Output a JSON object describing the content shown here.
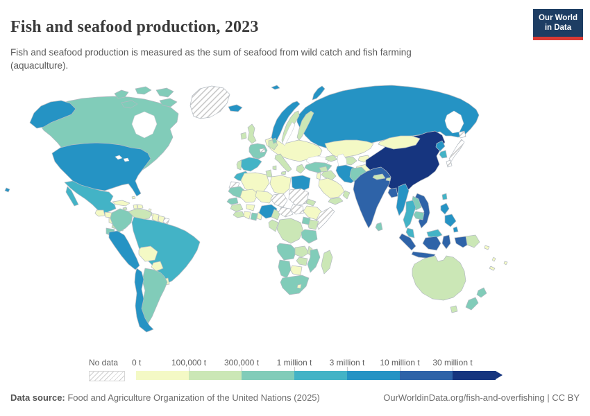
{
  "header": {
    "title": "Fish and seafood production, 2023",
    "subtitle": "Fish and seafood production is measured as the sum of seafood from wild catch and fish farming (aquaculture).",
    "logo": {
      "line1": "Our World",
      "line2": "in Data",
      "bg_color": "#1d3d63",
      "accent_color": "#d93a34"
    }
  },
  "legend": {
    "no_data_label": "No data",
    "ticks": [
      "0 t",
      "100,000 t",
      "300,000 t",
      "1 million t",
      "3 million t",
      "10 million t",
      "30 million t"
    ]
  },
  "footer": {
    "source_label": "Data source:",
    "source_text": " Food and Agriculture Organization of the United Nations (2025)",
    "link_text": "OurWorldinData.org/fish-and-overfishing | CC BY"
  },
  "chart_data": {
    "type": "choropleth",
    "title": "Fish and seafood production, 2023",
    "unit": "tonnes",
    "legend_bins": [
      {
        "range": "0 t – 100,000 t",
        "color": "#f4f9c5"
      },
      {
        "range": "100,000 t – 300,000 t",
        "color": "#cbe7b6"
      },
      {
        "range": "300,000 t – 1 million t",
        "color": "#81ccb9"
      },
      {
        "range": "1 million t – 3 million t",
        "color": "#43b3c6"
      },
      {
        "range": "3 million t – 10 million t",
        "color": "#2593c4"
      },
      {
        "range": "10 million t – 30 million t",
        "color": "#2e63a8"
      },
      {
        "range": "30 million t +",
        "color": "#16357f"
      }
    ],
    "no_data_style": "white with gray diagonal hatching",
    "countries": {
      "Canada": 2,
      "United States": 4,
      "Mexico": 3,
      "Guatemala": 0,
      "Honduras": 0,
      "Nicaragua": 0,
      "Costa Rica": 1,
      "Panama": 1,
      "Cuba": 0,
      "Haiti": 0,
      "Dominican Republic": 0,
      "Jamaica": 1,
      "Bahamas": 0,
      "Lesser Antilles": 0,
      "Colombia": 2,
      "Venezuela": 1,
      "Guyana": 0,
      "Suriname": 0,
      "French Guiana": "no_data",
      "Ecuador": 2,
      "Peru": 4,
      "Brazil": 3,
      "Bolivia": 0,
      "Paraguay": 0,
      "Uruguay": 0,
      "Chile": 4,
      "Argentina": 2,
      "Greenland": "no_data",
      "Iceland": 4,
      "Norway": 4,
      "Sweden": 1,
      "Finland": 1,
      "Denmark": 2,
      "United Kingdom": 1,
      "Ireland": 1,
      "France": 2,
      "Spain": 3,
      "Portugal": 1,
      "Germany": 1,
      "Central & Eastern Europe": 0,
      "Italy": 1,
      "Greece": 1,
      "Switzerland": "no_data",
      "Turkey": 2,
      "Caucasus": 1,
      "Russia": 4,
      "Kazakhstan": 0,
      "Uzbekistan": 1,
      "Turkmenistan": 0,
      "Kyrgyzstan": 0,
      "Afghanistan": 0,
      "Iran": 4,
      "Iraq": 1,
      "Syria": 1,
      "Israel & Jordan": 0,
      "Saudi Arabia": 0,
      "Yemen": 1,
      "Oman": 1,
      "Morocco": 3,
      "Western Sahara": "no_data",
      "Algeria": 0,
      "Tunisia": 1,
      "Libya": 0,
      "Egypt": 4,
      "Mauritania": 2,
      "Mali": 0,
      "Niger": 0,
      "Chad": "no_data",
      "Sudan": "no_data",
      "South Sudan": "no_data",
      "Eritrea": 1,
      "Ethiopia": 0,
      "Somalia": "no_data",
      "Senegal": 2,
      "Guinea": 1,
      "Sierra Leone & Liberia": 1,
      "Cote d'Ivoire": 0,
      "Burkina Faso": 0,
      "Ghana": 2,
      "Togo & Benin": 0,
      "Nigeria": 4,
      "Cameroon": 1,
      "Central African Republic": "no_data",
      "DR Congo": 1,
      "Congo & Gabon": 1,
      "Kenya": 1,
      "Uganda": 2,
      "Tanzania": 2,
      "Angola": 2,
      "Zambia": 1,
      "Malawi": 1,
      "Mozambique": 2,
      "Zimbabwe": 1,
      "Botswana": 0,
      "Namibia": 2,
      "South Africa": 2,
      "Lesotho": 0,
      "Madagascar": 1,
      "Pakistan": 2,
      "India": 5,
      "Nepal": 1,
      "Bhutan": 1,
      "Bangladesh": 5,
      "Sri Lanka": 2,
      "China": 6,
      "Mongolia": 0,
      "North Korea": 4,
      "South Korea": 3,
      "Japan": "no_data",
      "Taiwan": 3,
      "Myanmar": 4,
      "Thailand": 3,
      "Laos": 2,
      "Cambodia": 2,
      "Vietnam": 5,
      "Malaysia": 3,
      "Philippines": 4,
      "Indonesia": 5,
      "Papua New Guinea": 1,
      "Australia": 1,
      "New Zealand": 2,
      "Solomon Islands": 0,
      "Vanuatu": 0,
      "Fiji": 0,
      "New Caledonia": 0
    }
  }
}
